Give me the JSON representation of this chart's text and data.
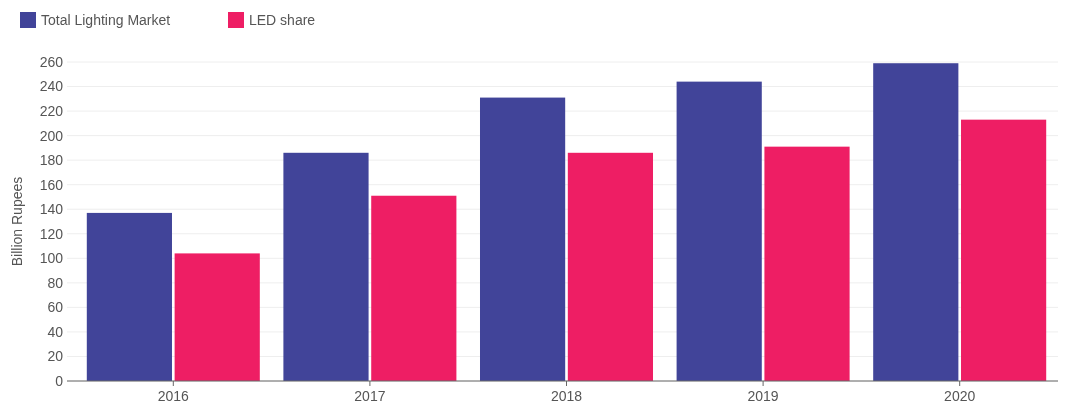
{
  "chart_data": {
    "type": "bar",
    "ylabel": "Billion Rupees",
    "categories": [
      "2016",
      "2017",
      "2018",
      "2019",
      "2020"
    ],
    "series": [
      {
        "name": "Total Lighting Market",
        "color": "#414499",
        "values": [
          137,
          186,
          231,
          244,
          259
        ]
      },
      {
        "name": "LED share",
        "color": "#ee1e64",
        "values": [
          104,
          151,
          186,
          191,
          213
        ]
      }
    ],
    "ylim": [
      0,
      260
    ],
    "yticks": [
      0,
      20,
      40,
      60,
      80,
      100,
      120,
      140,
      160,
      180,
      200,
      220,
      240,
      260
    ],
    "grid": "y",
    "legend": "top left"
  }
}
